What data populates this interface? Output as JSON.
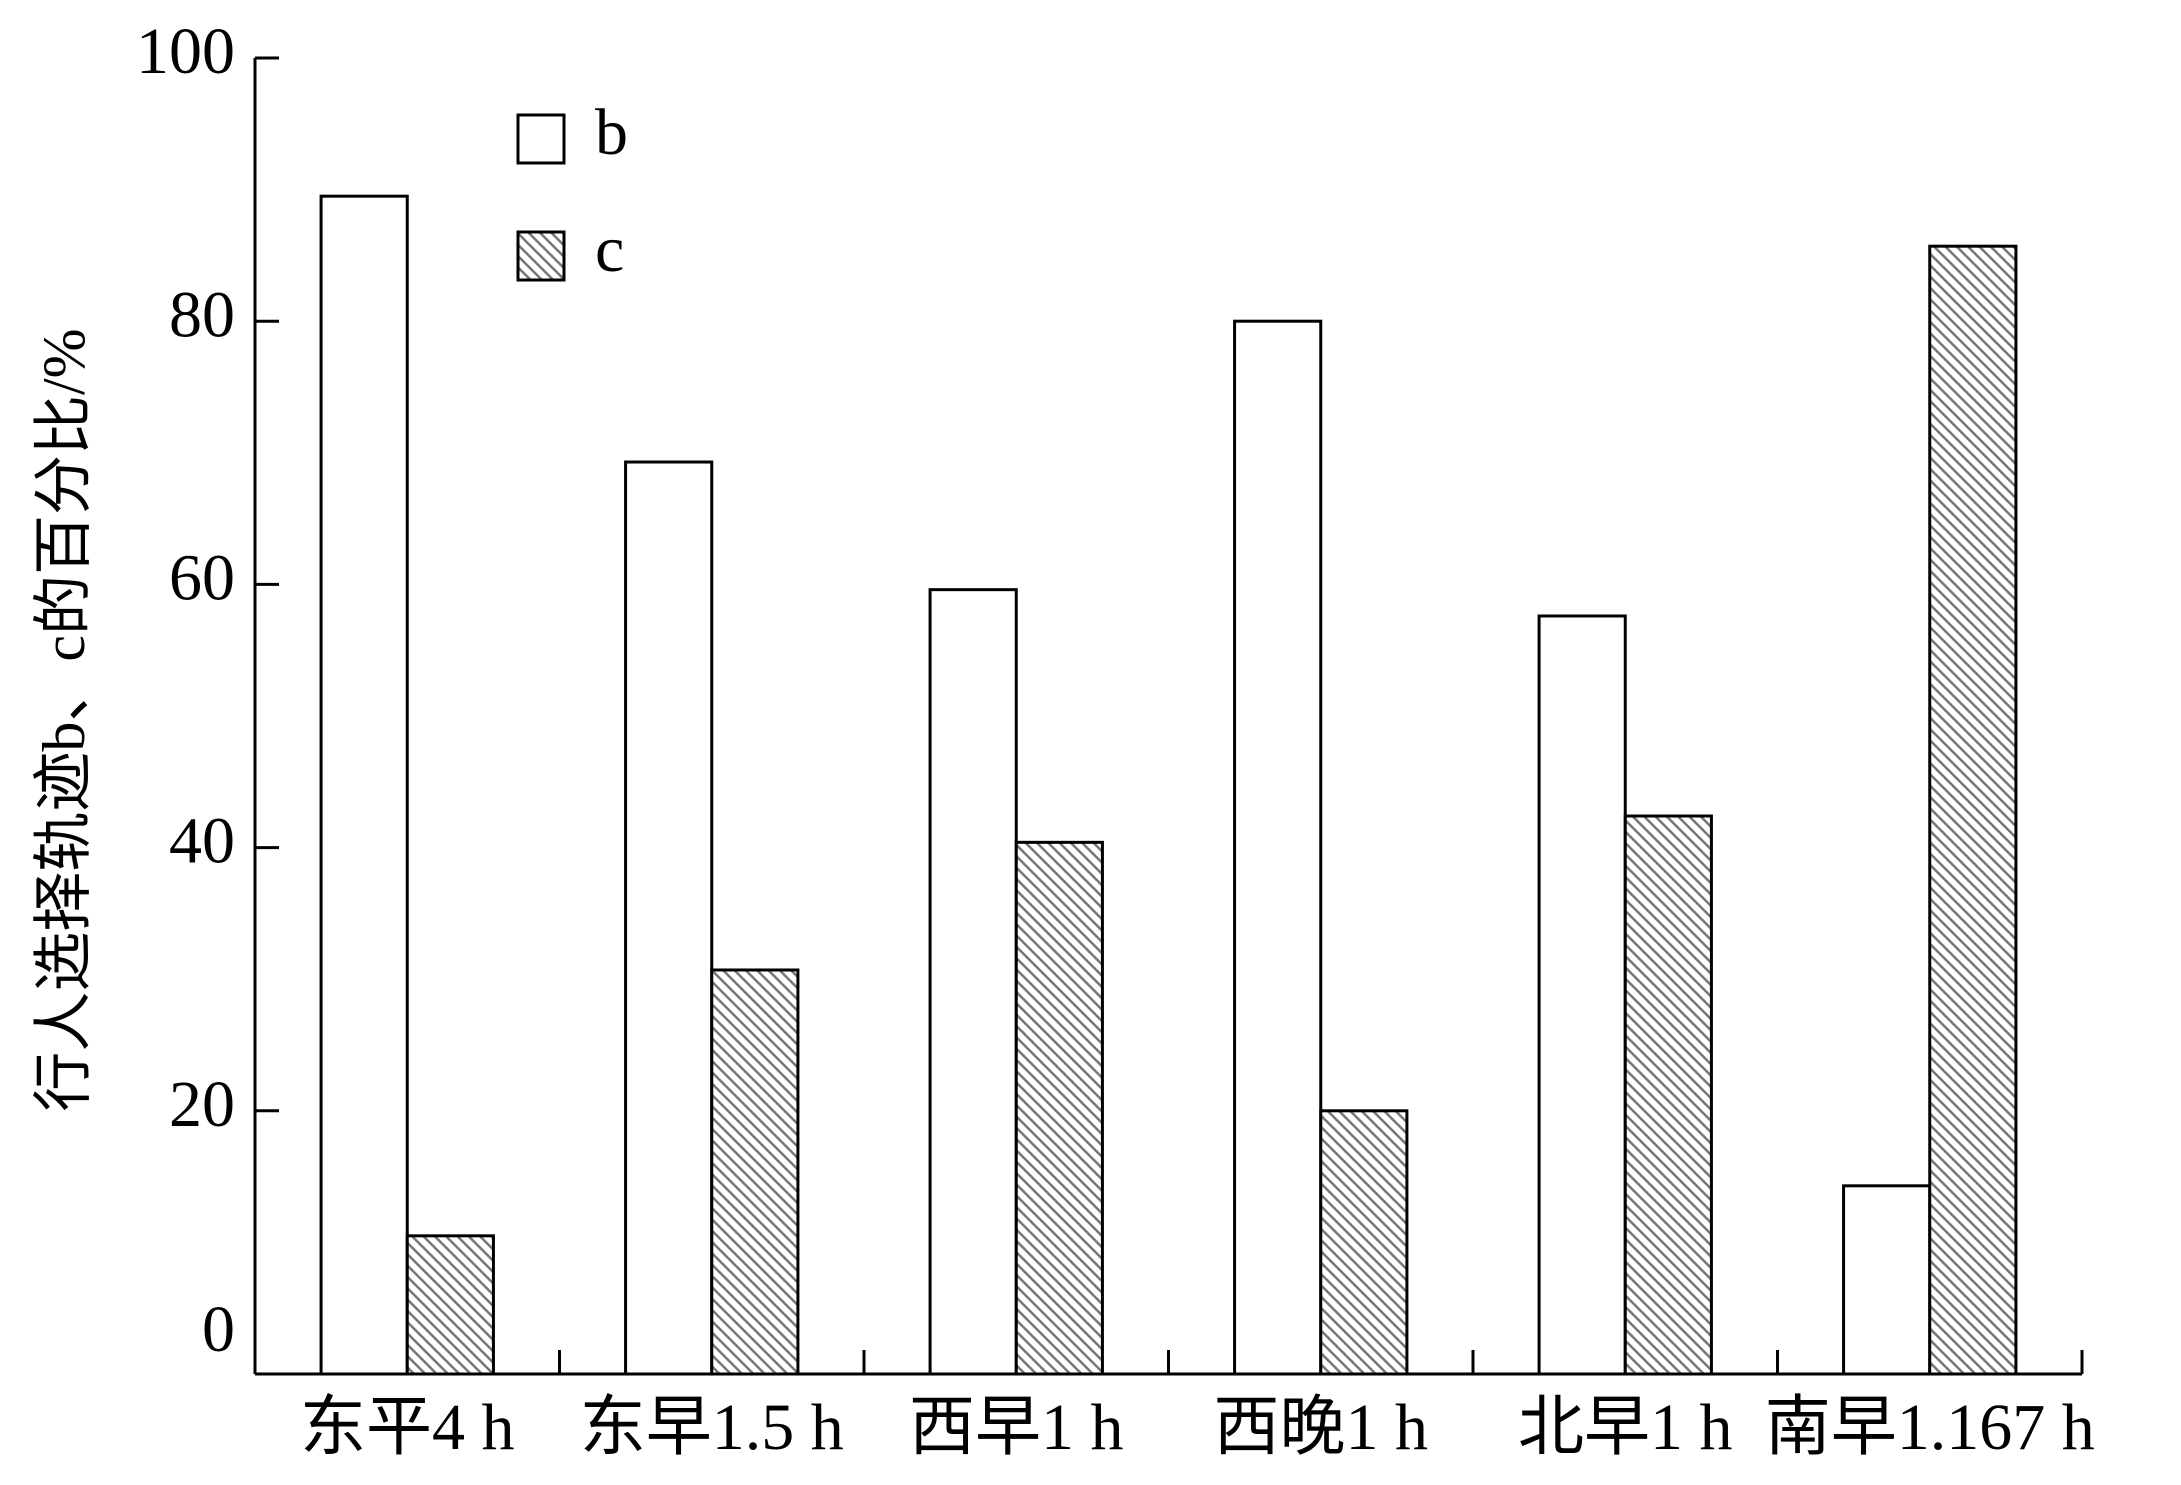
{
  "chart_data": {
    "type": "bar",
    "y_label": "行人选择轨迹b、c的百分比/%",
    "categories": [
      "东平4 h",
      "东早1.5 h",
      "西早1 h",
      "西晚1 h",
      "北早1 h",
      "南早1.167 h"
    ],
    "series": [
      {
        "name": "b",
        "color": "#ffffff",
        "values": [
          89.5,
          69.3,
          59.6,
          80,
          57.6,
          14.3
        ]
      },
      {
        "name": "c",
        "color": "#999999",
        "hatch": true,
        "values": [
          10.5,
          30.7,
          40.4,
          20,
          42.4,
          85.7
        ]
      }
    ],
    "ylim": [
      0,
      100
    ],
    "yticks": [
      0,
      20,
      40,
      60,
      80,
      100
    ],
    "grid": false,
    "legend": "top-left"
  }
}
